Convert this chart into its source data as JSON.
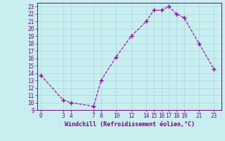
{
  "x": [
    0,
    3,
    4,
    7,
    8,
    10,
    12,
    14,
    15,
    16,
    17,
    18,
    19,
    21,
    23
  ],
  "y": [
    13.7,
    10.3,
    10.0,
    9.5,
    13.0,
    16.2,
    19.0,
    21.0,
    22.5,
    22.5,
    23.0,
    22.0,
    21.5,
    18.0,
    14.5
  ],
  "xticks": [
    0,
    3,
    4,
    7,
    8,
    10,
    12,
    14,
    15,
    16,
    17,
    18,
    19,
    21,
    23
  ],
  "yticks": [
    9,
    10,
    11,
    12,
    13,
    14,
    15,
    16,
    17,
    18,
    19,
    20,
    21,
    22,
    23
  ],
  "xlim": [
    -0.5,
    24.0
  ],
  "ylim": [
    9,
    23.5
  ],
  "xlabel": "Windchill (Refroidissement éolien,°C)",
  "line_color": "#990099",
  "marker": "+",
  "bg_color": "#c8eef0",
  "grid_color": "#a8d8d8",
  "tick_label_color": "#800080",
  "axis_color": "#800080",
  "xlabel_color": "#800080"
}
